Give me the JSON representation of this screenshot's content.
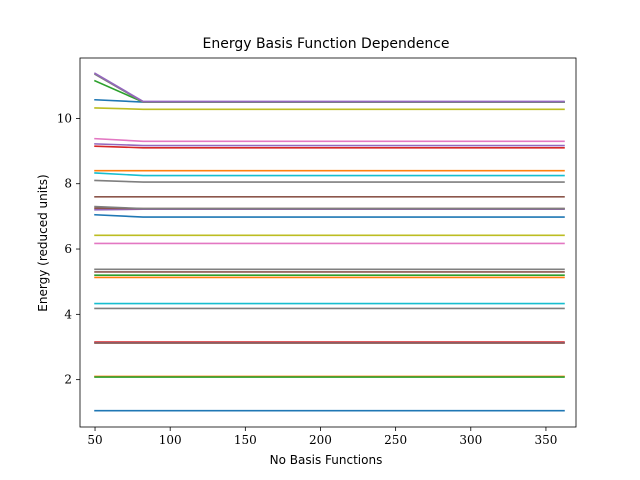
{
  "chart_data": {
    "type": "line",
    "title": "Energy Basis Function Dependence",
    "xlabel": "No Basis Functions",
    "ylabel": "Energy (reduced units)",
    "xlim": [
      40,
      370
    ],
    "ylim": [
      0.55,
      11.85
    ],
    "xticks": [
      50,
      100,
      150,
      200,
      250,
      300,
      350
    ],
    "xtick_labels": [
      "50",
      "100",
      "150",
      "200",
      "250",
      "300",
      "350"
    ],
    "yticks": [
      2,
      4,
      6,
      8,
      10
    ],
    "ytick_labels": [
      "2",
      "4",
      "6",
      "8",
      "10"
    ],
    "grid": false,
    "legend": "none",
    "x": [
      50,
      82,
      120,
      162,
      200,
      242,
      280,
      320,
      362
    ],
    "series": [
      {
        "color": "#1f77b4",
        "values": [
          1.05,
          1.05,
          1.05,
          1.05,
          1.05,
          1.05,
          1.05,
          1.05,
          1.05
        ]
      },
      {
        "color": "#ff7f0e",
        "values": [
          2.1,
          2.1,
          2.1,
          2.1,
          2.1,
          2.1,
          2.1,
          2.1,
          2.1
        ]
      },
      {
        "color": "#2ca02c",
        "values": [
          2.08,
          2.08,
          2.08,
          2.08,
          2.08,
          2.08,
          2.08,
          2.08,
          2.08
        ]
      },
      {
        "color": "#d62728",
        "values": [
          3.15,
          3.15,
          3.15,
          3.15,
          3.15,
          3.15,
          3.15,
          3.15,
          3.15
        ]
      },
      {
        "color": "#9467bd",
        "values": [
          3.13,
          3.13,
          3.13,
          3.13,
          3.13,
          3.13,
          3.13,
          3.13,
          3.13
        ]
      },
      {
        "color": "#8c564b",
        "values": [
          3.12,
          3.12,
          3.12,
          3.12,
          3.12,
          3.12,
          3.12,
          3.12,
          3.12
        ]
      },
      {
        "color": "#7f7f7f",
        "values": [
          4.18,
          4.18,
          4.18,
          4.18,
          4.18,
          4.18,
          4.18,
          4.18,
          4.18
        ]
      },
      {
        "color": "#17becf",
        "values": [
          4.33,
          4.33,
          4.33,
          4.33,
          4.33,
          4.33,
          4.33,
          4.33,
          4.33
        ]
      },
      {
        "color": "#ff7f0e",
        "values": [
          5.13,
          5.13,
          5.13,
          5.13,
          5.13,
          5.13,
          5.13,
          5.13,
          5.13
        ]
      },
      {
        "color": "#2ca02c",
        "values": [
          5.2,
          5.2,
          5.2,
          5.2,
          5.2,
          5.2,
          5.2,
          5.2,
          5.2
        ]
      },
      {
        "color": "#8c564b",
        "values": [
          5.3,
          5.3,
          5.3,
          5.3,
          5.3,
          5.3,
          5.3,
          5.3,
          5.3
        ]
      },
      {
        "color": "#7f7f7f",
        "values": [
          5.38,
          5.38,
          5.38,
          5.38,
          5.38,
          5.38,
          5.38,
          5.38,
          5.38
        ]
      },
      {
        "color": "#e377c2",
        "values": [
          6.17,
          6.17,
          6.17,
          6.17,
          6.17,
          6.17,
          6.17,
          6.17,
          6.17
        ]
      },
      {
        "color": "#bcbd22",
        "values": [
          6.42,
          6.42,
          6.42,
          6.42,
          6.42,
          6.42,
          6.42,
          6.42,
          6.42
        ]
      },
      {
        "color": "#1f77b4",
        "values": [
          7.05,
          6.98,
          6.98,
          6.98,
          6.98,
          6.98,
          6.98,
          6.98,
          6.98
        ]
      },
      {
        "color": "#9467bd",
        "values": [
          7.2,
          7.22,
          7.22,
          7.22,
          7.22,
          7.22,
          7.22,
          7.22,
          7.22
        ]
      },
      {
        "color": "#8c564b",
        "values": [
          7.25,
          7.24,
          7.24,
          7.24,
          7.24,
          7.24,
          7.24,
          7.24,
          7.24
        ]
      },
      {
        "color": "#7f7f7f",
        "values": [
          7.3,
          7.24,
          7.24,
          7.24,
          7.24,
          7.24,
          7.24,
          7.24,
          7.24
        ]
      },
      {
        "color": "#8c564b",
        "values": [
          7.6,
          7.6,
          7.6,
          7.6,
          7.6,
          7.6,
          7.6,
          7.6,
          7.6
        ]
      },
      {
        "color": "#7f7f7f",
        "values": [
          8.1,
          8.05,
          8.05,
          8.05,
          8.05,
          8.05,
          8.05,
          8.05,
          8.05
        ]
      },
      {
        "color": "#17becf",
        "values": [
          8.33,
          8.25,
          8.25,
          8.25,
          8.25,
          8.25,
          8.25,
          8.25,
          8.25
        ]
      },
      {
        "color": "#ff7f0e",
        "values": [
          8.4,
          8.4,
          8.4,
          8.4,
          8.4,
          8.4,
          8.4,
          8.4,
          8.4
        ]
      },
      {
        "color": "#d62728",
        "values": [
          9.15,
          9.1,
          9.1,
          9.1,
          9.1,
          9.1,
          9.1,
          9.1,
          9.1
        ]
      },
      {
        "color": "#9467bd",
        "values": [
          9.22,
          9.17,
          9.17,
          9.17,
          9.17,
          9.17,
          9.17,
          9.17,
          9.17
        ]
      },
      {
        "color": "#e377c2",
        "values": [
          9.38,
          9.3,
          9.3,
          9.3,
          9.3,
          9.3,
          9.3,
          9.3,
          9.3
        ]
      },
      {
        "color": "#bcbd22",
        "values": [
          10.32,
          10.28,
          10.28,
          10.28,
          10.28,
          10.28,
          10.28,
          10.28,
          10.28
        ]
      },
      {
        "color": "#1f77b4",
        "values": [
          10.57,
          10.5,
          10.5,
          10.5,
          10.5,
          10.5,
          10.5,
          10.5,
          10.5
        ]
      },
      {
        "color": "#2ca02c",
        "values": [
          11.15,
          10.5,
          10.5,
          10.5,
          10.5,
          10.5,
          10.5,
          10.5,
          10.5
        ]
      },
      {
        "color": "#7f7f7f",
        "values": [
          11.35,
          10.5,
          10.5,
          10.5,
          10.5,
          10.5,
          10.5,
          10.5,
          10.5
        ]
      },
      {
        "color": "#9467bd",
        "values": [
          11.38,
          10.52,
          10.52,
          10.52,
          10.52,
          10.52,
          10.52,
          10.52,
          10.52
        ]
      }
    ]
  }
}
